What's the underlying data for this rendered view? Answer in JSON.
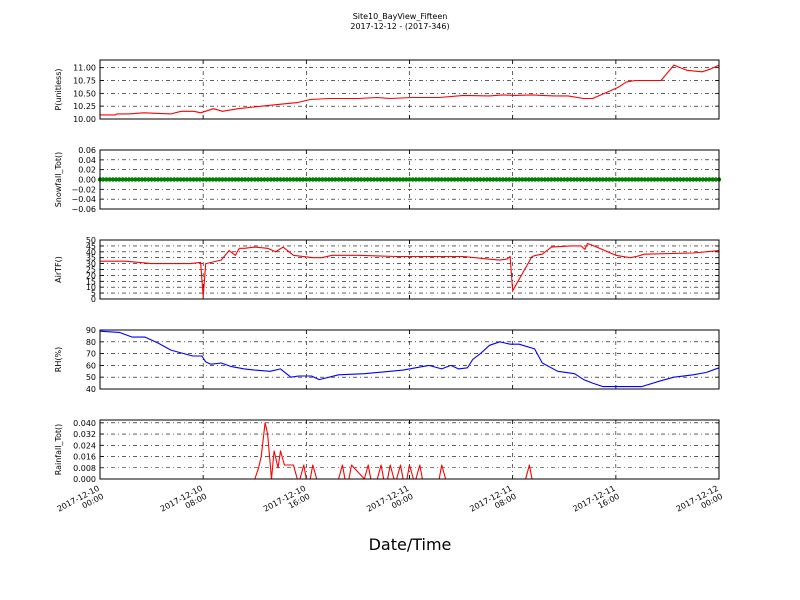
{
  "figure": {
    "title": "Site10_BayView_Fifteen",
    "subtitle": "2017-12-12 - (2017-346)",
    "xlabel": "Date/Time",
    "x_ticks": [
      "2017-12-10\n00:00",
      "2017-12-10\n08:00",
      "2017-12-10\n16:00",
      "2017-12-11\n00:00",
      "2017-12-11\n08:00",
      "2017-12-11\n16:00",
      "2017-12-12\n00:00"
    ]
  },
  "chart_data": [
    {
      "type": "line",
      "name": "P",
      "ylabel": "P(unitless)",
      "color": "#ff0000",
      "ylim": [
        10.0,
        11.15
      ],
      "yticks": [
        10.0,
        10.25,
        10.5,
        10.75,
        11.0
      ],
      "ytick_labels": [
        "10.00",
        "10.25",
        "10.50",
        "10.75",
        "11.00"
      ],
      "grid": true,
      "xlim_hours": [
        0,
        48
      ],
      "x_hours": [
        0,
        1.2,
        1.3,
        2.2,
        3.4,
        5.5,
        6.3,
        7.3,
        7.8,
        8.8,
        9.5,
        10.7,
        12.5,
        14.5,
        15.3,
        16.3,
        17.8,
        20,
        21.5,
        22.5,
        24.2,
        26.3,
        28.2,
        30.2,
        31.2,
        32.2,
        33.5,
        34.3,
        35.2,
        36.3,
        37.5,
        38.2,
        40.2,
        40.8,
        41.5,
        43.5,
        44.5,
        45.5,
        46.7,
        47.3,
        48
      ],
      "y": [
        10.08,
        10.08,
        10.1,
        10.1,
        10.12,
        10.1,
        10.15,
        10.15,
        10.12,
        10.2,
        10.15,
        10.2,
        10.25,
        10.3,
        10.32,
        10.38,
        10.4,
        10.4,
        10.42,
        10.4,
        10.42,
        10.42,
        10.46,
        10.45,
        10.47,
        10.46,
        10.47,
        10.46,
        10.45,
        10.45,
        10.4,
        10.4,
        10.62,
        10.72,
        10.75,
        10.75,
        11.05,
        10.95,
        10.92,
        10.97,
        11.05
      ]
    },
    {
      "type": "scatter",
      "name": "Snowfall",
      "ylabel": "Snowfall_Tot()",
      "color": "#008000",
      "ylim": [
        -0.06,
        0.06
      ],
      "yticks": [
        -0.06,
        -0.04,
        -0.02,
        0.0,
        0.02,
        0.04,
        0.06
      ],
      "ytick_labels": [
        "−0.06",
        "−0.04",
        "−0.02",
        "0.00",
        "0.02",
        "0.04",
        "0.06"
      ],
      "grid": true,
      "xlim_hours": [
        0,
        48
      ],
      "constant_value": 0.0,
      "interval_hours": 0.25
    },
    {
      "type": "line",
      "name": "AirTF",
      "ylabel": "AirTF()",
      "color": "#ff0000",
      "ylim": [
        0,
        50
      ],
      "yticks": [
        0,
        5,
        10,
        15,
        20,
        25,
        30,
        35,
        40,
        45,
        50
      ],
      "ytick_labels": [
        "0",
        "5",
        "10",
        "15",
        "20",
        "25",
        "30",
        "35",
        "40",
        "45",
        "50"
      ],
      "grid": true,
      "xlim_hours": [
        0,
        48
      ],
      "x_hours": [
        0,
        2,
        4,
        6,
        7,
        7.8,
        8.0,
        8.2,
        9.4,
        10,
        10.5,
        10.8,
        11.2,
        12,
        13,
        13.6,
        14.2,
        15,
        16.5,
        17.2,
        18,
        20,
        23,
        26.5,
        28.2,
        30,
        31,
        31.6,
        31.8,
        32.0,
        33.5,
        33.8,
        34.3,
        35,
        36.5,
        37.3,
        37.6,
        37.8,
        38.3,
        40,
        41.1,
        41.6,
        42.2,
        46,
        48
      ],
      "y": [
        32,
        32,
        30,
        30,
        30,
        31,
        2,
        30,
        33,
        41,
        37,
        43,
        43,
        44,
        43,
        40,
        44,
        37,
        35,
        35,
        37,
        37,
        36,
        36,
        36,
        34,
        33,
        34,
        36,
        7,
        36,
        37,
        38,
        44,
        45,
        45,
        42,
        47,
        45,
        37,
        35,
        36,
        38,
        39,
        41
      ]
    },
    {
      "type": "line",
      "name": "RH",
      "ylabel": "RH(%)",
      "color": "#0000ff",
      "ylim": [
        40,
        90
      ],
      "yticks": [
        40,
        50,
        60,
        70,
        80,
        90
      ],
      "ytick_labels": [
        "40",
        "50",
        "60",
        "70",
        "80",
        "90"
      ],
      "grid": true,
      "xlim_hours": [
        0,
        48
      ],
      "x_hours": [
        0,
        1.5,
        2.5,
        3.5,
        4.5,
        5.5,
        6.5,
        7.2,
        7.9,
        8.2,
        8.6,
        9.4,
        10.2,
        11.2,
        12,
        13.2,
        14,
        14.8,
        15.4,
        16.4,
        17,
        18.5,
        20.5,
        23.5,
        25.5,
        26.5,
        27.2,
        27.8,
        28.5,
        28.9,
        29.5,
        30.2,
        31,
        31.4,
        31.8,
        32.5,
        33.7,
        34.3,
        35.5,
        36.8,
        37.5,
        38.2,
        39,
        40,
        41,
        42,
        43.5,
        44.5,
        46,
        47,
        48
      ],
      "y": [
        89,
        88,
        84,
        84,
        79,
        73,
        70,
        68,
        68,
        63,
        61,
        62,
        59,
        57,
        56,
        55,
        57,
        50,
        51,
        51,
        48,
        52,
        53,
        56,
        60,
        57,
        60,
        57,
        58,
        65,
        70,
        77,
        80,
        79,
        78,
        78,
        74,
        62,
        55,
        53,
        48,
        45,
        42,
        42,
        42,
        42,
        47,
        50,
        52,
        54,
        58
      ]
    },
    {
      "type": "line",
      "name": "Rainfall",
      "ylabel": "Rainfall_Tot()",
      "color": "#ff0000",
      "ylim": [
        0.0,
        0.042
      ],
      "yticks": [
        0.0,
        0.008,
        0.016,
        0.024,
        0.032,
        0.04
      ],
      "ytick_labels": [
        "0.000",
        "0.008",
        "0.016",
        "0.024",
        "0.032",
        "0.040"
      ],
      "grid": true,
      "xlim_hours": [
        0,
        48
      ],
      "x_hours": [
        0,
        12.0,
        12.3,
        12.5,
        12.8,
        13.0,
        13.3,
        13.5,
        13.8,
        14.0,
        14.3,
        14.5,
        15.0,
        15.3,
        15.5,
        15.8,
        16.0,
        16.3,
        16.5,
        16.8,
        17.0,
        17.3,
        17.5,
        18.5,
        18.8,
        19.0,
        19.3,
        19.5,
        20.5,
        20.8,
        21.0,
        21.5,
        21.8,
        22.0,
        22.3,
        22.5,
        22.8,
        23.0,
        23.3,
        23.5,
        23.8,
        24.0,
        24.3,
        24.5,
        24.8,
        25.0,
        25.3,
        25.5,
        25.8,
        26.0,
        26.3,
        26.5,
        26.8,
        27.0,
        27.3,
        27.5,
        27.8,
        28.0,
        33.0,
        33.3,
        33.5,
        48
      ],
      "y": [
        0,
        0,
        0.008,
        0.016,
        0.04,
        0.032,
        0.0,
        0.02,
        0.008,
        0.02,
        0.01,
        0.01,
        0.01,
        0.0,
        0.0,
        0.01,
        0.0,
        0.0,
        0.01,
        0.0,
        0.0,
        0.0,
        0.0,
        0.0,
        0.01,
        0.0,
        0.0,
        0.01,
        0.0,
        0.01,
        0.0,
        0.0,
        0.01,
        0.0,
        0.0,
        0.01,
        0.0,
        0.0,
        0.01,
        0.0,
        0.0,
        0.01,
        0.0,
        0.0,
        0.01,
        0.0,
        0.0,
        0.0,
        0.0,
        0.0,
        0.0,
        0.01,
        0.0,
        0.0,
        0.0,
        0.0,
        0.0,
        0.0,
        0.0,
        0.01,
        0.0,
        0.0
      ]
    }
  ]
}
